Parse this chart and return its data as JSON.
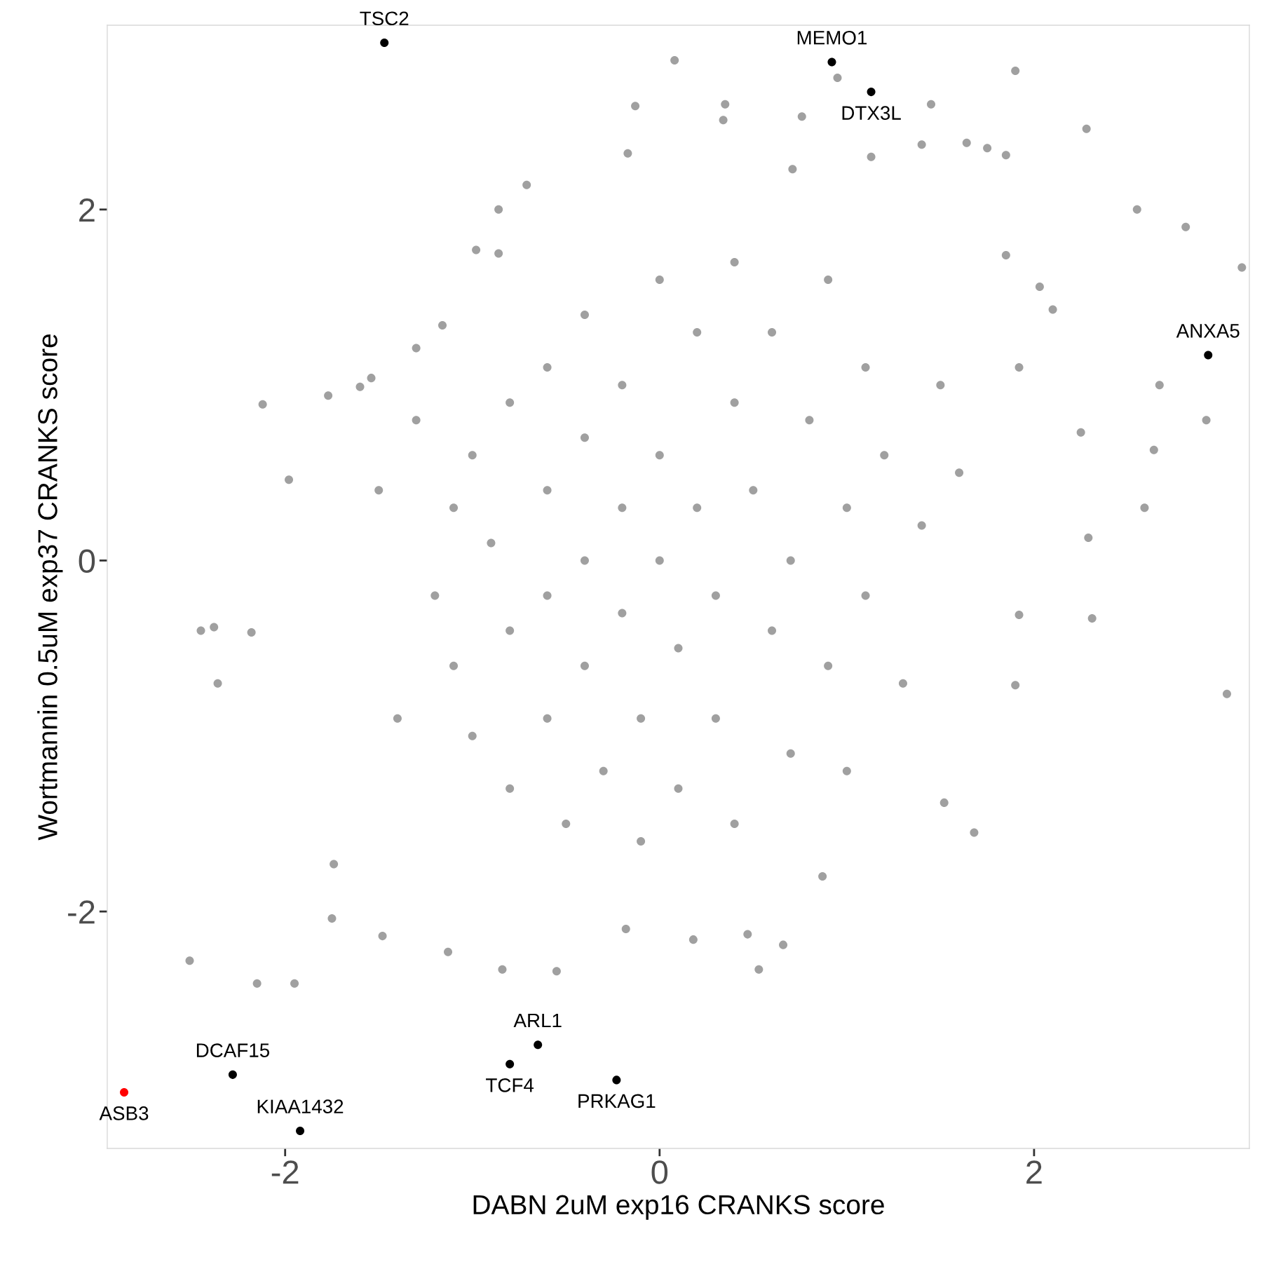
{
  "chart_data": {
    "type": "scatter",
    "xlabel": "DABN 2uM exp16 CRANKS score",
    "ylabel": "Wortmannin 0.5uM exp37 CRANKS score",
    "xlim": [
      -2.95,
      3.15
    ],
    "ylim": [
      -3.35,
      3.05
    ],
    "xticks": [
      -2,
      0,
      2
    ],
    "yticks": [
      -2,
      0,
      2
    ],
    "grid": false,
    "legend": false,
    "marker": "circle",
    "series": [
      {
        "color": "#a0a0a0",
        "x": [
          0.08,
          1.9,
          -0.13,
          0.35,
          0.34,
          0.76,
          0.95,
          1.45,
          2.28,
          1.4,
          1.64,
          1.75,
          1.85,
          1.13,
          0.71,
          -0.17,
          -0.71,
          -0.86,
          -0.86,
          -0.98,
          2.55,
          2.81,
          3.11,
          2.67,
          2.92,
          2.64,
          2.59,
          2.29,
          2.31,
          3.03,
          1.9,
          1.52,
          1.68,
          0.87,
          0.66,
          0.53,
          0.18,
          0.47,
          -0.18,
          -0.55,
          -0.84,
          -1.13,
          -1.48,
          -1.75,
          -2.15,
          -1.95,
          -2.51,
          -1.74,
          -2.45,
          -2.38,
          -2.36,
          -2.18,
          -2.12,
          -1.98,
          -1.77,
          -1.6,
          -1.54,
          -1.3,
          -1.16,
          2.03,
          2.1,
          1.85,
          1.92,
          2.25,
          1.92,
          -1.2,
          -1.1,
          -1.1,
          -1.0,
          -1.0,
          -0.9,
          -0.8,
          -0.8,
          -0.8,
          -0.6,
          -0.6,
          -0.6,
          -0.6,
          -0.5,
          -0.4,
          -0.4,
          -0.4,
          -0.4,
          -0.3,
          -0.2,
          -0.2,
          -0.2,
          -0.1,
          -0.1,
          0.0,
          0.0,
          0.0,
          0.1,
          0.1,
          0.2,
          0.2,
          0.3,
          0.3,
          0.4,
          0.4,
          0.4,
          0.5,
          0.6,
          0.6,
          0.7,
          0.7,
          0.8,
          0.9,
          0.9,
          1.0,
          1.1,
          1.1,
          1.2,
          1.3,
          1.4,
          1.5,
          1.6,
          -1.4,
          -1.5,
          -1.3,
          1.0
        ],
        "values": [
          2.85,
          2.79,
          2.59,
          2.6,
          2.51,
          2.53,
          2.75,
          2.6,
          2.46,
          2.37,
          2.38,
          2.35,
          2.31,
          2.3,
          2.23,
          2.32,
          2.14,
          2.0,
          1.75,
          1.77,
          2.0,
          1.9,
          1.67,
          1.0,
          0.8,
          0.63,
          0.3,
          0.13,
          -0.33,
          -0.76,
          -0.71,
          -1.38,
          -1.55,
          -1.8,
          -2.19,
          -2.33,
          -2.16,
          -2.13,
          -2.1,
          -2.34,
          -2.33,
          -2.23,
          -2.14,
          -2.04,
          -2.41,
          -2.41,
          -2.28,
          -1.73,
          -0.4,
          -0.38,
          -0.7,
          -0.41,
          0.89,
          0.46,
          0.94,
          0.99,
          1.04,
          1.21,
          1.34,
          1.56,
          1.43,
          1.74,
          1.1,
          0.73,
          -0.31,
          -0.2,
          0.3,
          -0.6,
          0.6,
          -1.0,
          0.1,
          0.9,
          -0.4,
          -1.3,
          1.1,
          0.4,
          -0.2,
          -0.9,
          -1.5,
          1.4,
          0.7,
          0.0,
          -0.6,
          -1.2,
          1.0,
          0.3,
          -0.3,
          -0.9,
          -1.6,
          1.6,
          0.6,
          0.0,
          -0.5,
          -1.3,
          1.3,
          0.3,
          -0.2,
          -0.9,
          1.7,
          0.9,
          -1.5,
          0.4,
          -0.4,
          1.3,
          0.0,
          -1.1,
          0.8,
          1.6,
          -0.6,
          0.3,
          1.1,
          -0.2,
          0.6,
          -0.7,
          0.2,
          1.0,
          0.5,
          -0.9,
          0.4,
          0.8,
          -1.2
        ]
      },
      {
        "color": "#000000",
        "x": [
          -1.47,
          0.92,
          1.13,
          2.93,
          -0.65,
          -0.8,
          -0.23,
          -2.28,
          -1.92
        ],
        "values": [
          2.95,
          2.84,
          2.67,
          1.17,
          -2.76,
          -2.87,
          -2.96,
          -2.93,
          -3.25
        ]
      },
      {
        "color": "#ff0000",
        "x": [
          -2.86
        ],
        "values": [
          -3.03
        ]
      }
    ],
    "annotations": [
      {
        "text": "TSC2",
        "x": -1.47,
        "y": 2.95
      },
      {
        "text": "MEMO1",
        "x": 0.92,
        "y": 2.84
      },
      {
        "text": "DTX3L",
        "x": 1.13,
        "y": 2.67
      },
      {
        "text": "ANXA5",
        "x": 2.93,
        "y": 1.17
      },
      {
        "text": "ARL1",
        "x": -0.65,
        "y": -2.76
      },
      {
        "text": "TCF4",
        "x": -0.8,
        "y": -2.87
      },
      {
        "text": "PRKAG1",
        "x": -0.23,
        "y": -2.96
      },
      {
        "text": "DCAF15",
        "x": -2.28,
        "y": -2.93
      },
      {
        "text": "KIAA1432",
        "x": -1.92,
        "y": -3.25
      },
      {
        "text": "ASB3",
        "x": -2.86,
        "y": -3.03
      }
    ]
  }
}
